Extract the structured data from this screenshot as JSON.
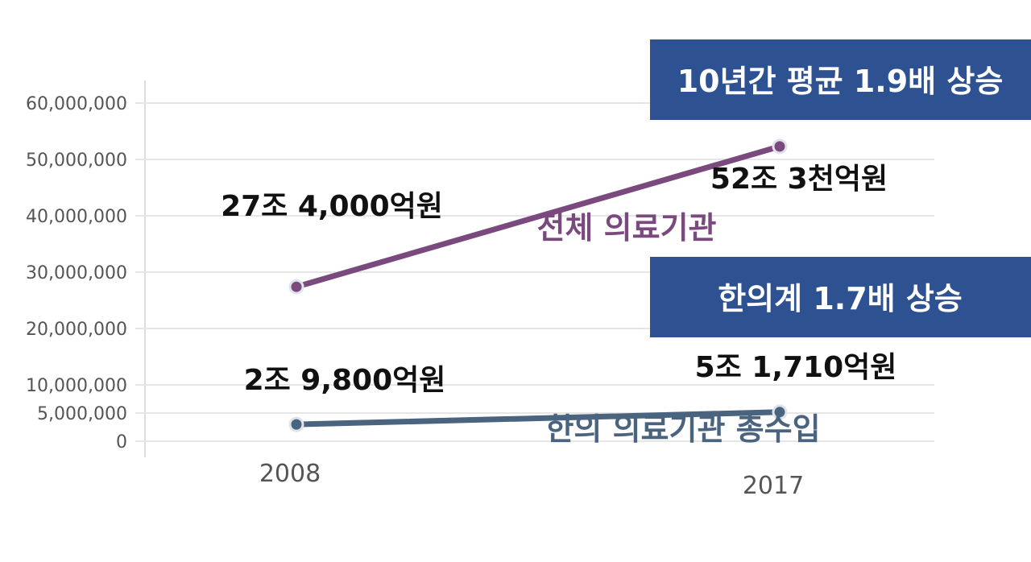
{
  "chart_data": {
    "type": "line",
    "x": [
      "2008",
      "2017"
    ],
    "ylim": [
      0,
      60000000
    ],
    "yticks": [
      0,
      5000000,
      10000000,
      20000000,
      30000000,
      40000000,
      50000000,
      60000000
    ],
    "ytick_labels": [
      "0",
      "5,000,000",
      "10,000,000",
      "20,000,000",
      "30,000,000",
      "40,000,000",
      "50,000,000",
      "60,000,000"
    ],
    "grid": true,
    "series": [
      {
        "name": "전체 의료기관",
        "color": "#7a4a7e",
        "values": [
          27400000,
          52300000
        ],
        "data_labels": [
          "27조 4,000억원",
          "52조 3천억원"
        ]
      },
      {
        "name": "한의 의료기관 총수입",
        "color": "#4a6480",
        "values": [
          2980000,
          5171000
        ],
        "data_labels": [
          "2조 9,800억원",
          "5조 1,710억원"
        ]
      }
    ],
    "annotations": [
      {
        "text": "10년간 평균 1.9배 상승",
        "color": "#2d5191"
      },
      {
        "text": "한의계 1.7배 상승",
        "color": "#2d5191"
      }
    ]
  }
}
